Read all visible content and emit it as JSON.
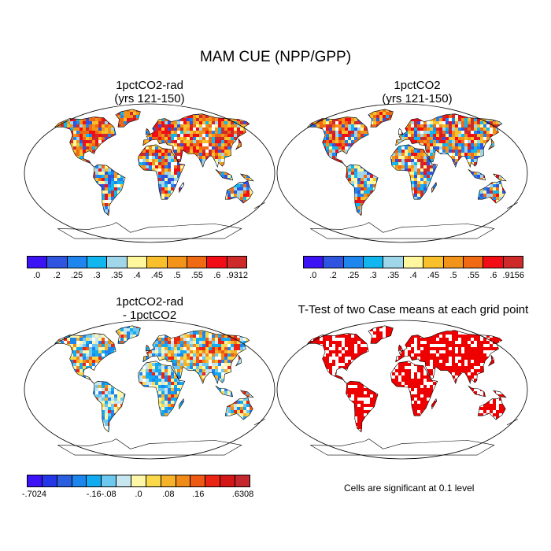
{
  "figure": {
    "title": "MAM CUE (NPP/GPP)"
  },
  "panels": [
    {
      "id": "p1",
      "title_lines": [
        "1pctCO2-rad",
        "(yrs 121-150)"
      ],
      "style": "warm-dominant"
    },
    {
      "id": "p2",
      "title_lines": [
        "1pctCO2",
        "(yrs 121-150)"
      ],
      "style": "mixed"
    },
    {
      "id": "p3",
      "title_lines": [
        "1pctCO2-rad",
        "- 1pctCO2"
      ],
      "style": "diff"
    },
    {
      "id": "p4",
      "title_lines": [
        "T-Test of two Case means at each grid point"
      ],
      "style": "significance"
    }
  ],
  "colorbars": {
    "cb1": {
      "colors": [
        "#3b13f4",
        "#2f55e0",
        "#1f86ef",
        "#12b6ee",
        "#9fd6ea",
        "#fff79e",
        "#f8c12c",
        "#f29419",
        "#ef6a12",
        "#f20d16",
        "#cf2a2a"
      ],
      "labels": [
        ".0",
        ".2",
        ".25",
        ".3",
        ".35",
        ".4",
        ".45",
        ".5",
        ".55",
        ".6",
        ".9312"
      ]
    },
    "cb2": {
      "colors": [
        "#3b13f4",
        "#2f55e0",
        "#1f86ef",
        "#12b6ee",
        "#9fd6ea",
        "#fff79e",
        "#f8c12c",
        "#f29419",
        "#ef6a12",
        "#f20d16",
        "#cf2a2a"
      ],
      "labels": [
        ".0",
        ".2",
        ".25",
        ".3",
        ".35",
        ".4",
        ".45",
        ".5",
        ".55",
        ".6",
        ".9156"
      ]
    },
    "cb3": {
      "colors": [
        "#3b13f4",
        "#2536e8",
        "#2a5fe0",
        "#1c86ee",
        "#12aaf0",
        "#6cc8ee",
        "#c6e7f0",
        "#fff7a8",
        "#f9d94a",
        "#f6b22a",
        "#f08a19",
        "#ee5a13",
        "#ea2514",
        "#d41616",
        "#c4282e"
      ],
      "labels": [
        "-.7024",
        "-.16",
        "-.08",
        ".0",
        ".08",
        ".16",
        ".6308"
      ]
    }
  },
  "note": "Cells are significant at 0.1 level",
  "palette": {
    "significance_fill": "#ee0000",
    "border": "#000000"
  }
}
